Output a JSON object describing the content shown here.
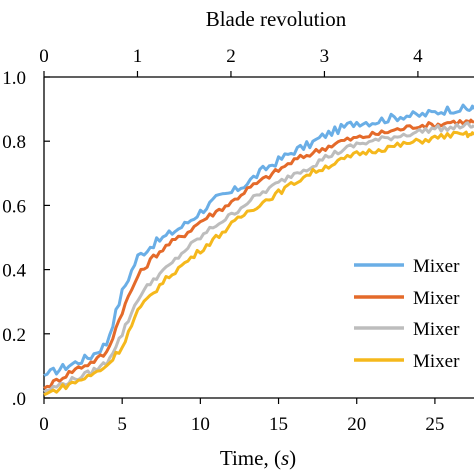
{
  "chart_data": {
    "type": "line",
    "xlabel_prefix": "Time, (",
    "xlabel_unit": "s",
    "xlabel_suffix": ")",
    "top_xlabel": "Blade revolution",
    "xlim": [
      0,
      27.5
    ],
    "ylim": [
      0,
      1.0
    ],
    "x_ticks": [
      "0",
      "5",
      "10",
      "15",
      "20",
      "25"
    ],
    "x_tick_values": [
      0,
      5,
      10,
      15,
      20,
      25
    ],
    "top_ticks": [
      "0",
      "1",
      "2",
      "3",
      "4"
    ],
    "top_tick_values": [
      0,
      1,
      2,
      3,
      4
    ],
    "top_lim": [
      0,
      4.6
    ],
    "y_ticks": [
      ".0",
      "0.2",
      "0.4",
      "0.6",
      "0.8",
      "1.0"
    ],
    "y_tick_values": [
      0,
      0.2,
      0.4,
      0.6,
      0.8,
      1.0
    ],
    "grid": false,
    "legend_position": "center-right",
    "x": [
      0,
      1,
      2,
      3,
      4,
      5,
      6,
      7,
      8,
      9,
      10,
      11,
      12,
      13,
      14,
      15,
      16,
      17,
      18,
      19,
      20,
      21,
      22,
      23,
      24,
      25,
      26,
      27,
      27.5
    ],
    "series": [
      {
        "name": "Mixer",
        "color": "#6aaee6",
        "values": [
          0.07,
          0.09,
          0.11,
          0.13,
          0.17,
          0.33,
          0.44,
          0.48,
          0.51,
          0.54,
          0.58,
          0.62,
          0.64,
          0.67,
          0.71,
          0.74,
          0.77,
          0.79,
          0.82,
          0.84,
          0.86,
          0.86,
          0.87,
          0.88,
          0.88,
          0.89,
          0.9,
          0.9,
          0.9
        ]
      },
      {
        "name": "Mixer",
        "color": "#e46a2a",
        "values": [
          0.03,
          0.06,
          0.09,
          0.11,
          0.14,
          0.27,
          0.38,
          0.44,
          0.48,
          0.51,
          0.55,
          0.58,
          0.61,
          0.65,
          0.68,
          0.71,
          0.74,
          0.76,
          0.78,
          0.8,
          0.81,
          0.82,
          0.83,
          0.84,
          0.85,
          0.85,
          0.86,
          0.86,
          0.86
        ]
      },
      {
        "name": "Mixer",
        "color": "#bdbdbd",
        "values": [
          0.02,
          0.04,
          0.06,
          0.08,
          0.11,
          0.2,
          0.31,
          0.37,
          0.41,
          0.46,
          0.5,
          0.54,
          0.57,
          0.61,
          0.64,
          0.67,
          0.7,
          0.72,
          0.75,
          0.77,
          0.79,
          0.8,
          0.81,
          0.82,
          0.83,
          0.84,
          0.84,
          0.85,
          0.85
        ]
      },
      {
        "name": "Mixer",
        "color": "#f5b81c",
        "values": [
          0.01,
          0.03,
          0.05,
          0.07,
          0.1,
          0.16,
          0.27,
          0.33,
          0.38,
          0.42,
          0.46,
          0.5,
          0.54,
          0.58,
          0.61,
          0.64,
          0.67,
          0.7,
          0.72,
          0.74,
          0.76,
          0.77,
          0.78,
          0.79,
          0.8,
          0.81,
          0.82,
          0.82,
          0.82
        ]
      }
    ]
  }
}
